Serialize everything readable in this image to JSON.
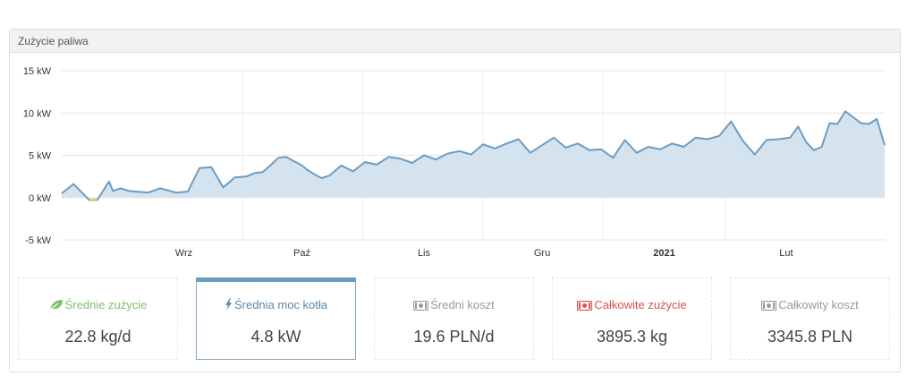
{
  "panel": {
    "title": "Zużycie paliwa"
  },
  "chart_data": {
    "type": "area",
    "title": "",
    "xlabel": "",
    "ylabel": "",
    "ylim": [
      -5,
      15
    ],
    "y_ticks": [
      "15 kW",
      "10 kW",
      "5 kW",
      "0 kW",
      "-5 kW"
    ],
    "y_tick_values": [
      15,
      10,
      5,
      0,
      -5
    ],
    "x_ticks": [
      "Wrz",
      "Paź",
      "Lis",
      "Gru",
      "2021",
      "Lut"
    ],
    "x_tick_dates": [
      "2020-09-01",
      "2020-10-01",
      "2020-11-01",
      "2020-12-01",
      "2021-01-01",
      "2021-02-01"
    ],
    "x_range": [
      "2020-08-01",
      "2021-02-26"
    ],
    "grid": true,
    "series_color": "#6b9cc2",
    "fill_color": "#d5e3ef",
    "negative_color": "#e7c34a",
    "series": [
      {
        "name": "",
        "x": [
          "2020-08-01",
          "2020-08-04",
          "2020-08-07",
          "2020-08-08",
          "2020-08-10",
          "2020-08-13",
          "2020-08-14",
          "2020-08-16",
          "2020-08-18",
          "2020-08-20",
          "2020-08-23",
          "2020-08-26",
          "2020-08-30",
          "2020-09-02",
          "2020-09-05",
          "2020-09-08",
          "2020-09-11",
          "2020-09-14",
          "2020-09-17",
          "2020-09-19",
          "2020-09-21",
          "2020-09-23",
          "2020-09-25",
          "2020-09-27",
          "2020-09-29",
          "2020-10-01",
          "2020-10-02",
          "2020-10-04",
          "2020-10-06",
          "2020-10-08",
          "2020-10-11",
          "2020-10-14",
          "2020-10-17",
          "2020-10-20",
          "2020-10-23",
          "2020-10-26",
          "2020-10-29",
          "2020-11-01",
          "2020-11-04",
          "2020-11-07",
          "2020-11-10",
          "2020-11-13",
          "2020-11-16",
          "2020-11-19",
          "2020-11-22",
          "2020-11-25",
          "2020-11-28",
          "2020-12-01",
          "2020-12-04",
          "2020-12-07",
          "2020-12-10",
          "2020-12-13",
          "2020-12-16",
          "2020-12-19",
          "2020-12-22",
          "2020-12-25",
          "2020-12-28",
          "2020-12-31",
          "2021-01-03",
          "2021-01-06",
          "2021-01-09",
          "2021-01-12",
          "2021-01-15",
          "2021-01-18",
          "2021-01-21",
          "2021-01-24",
          "2021-01-27",
          "2021-01-30",
          "2021-02-02",
          "2021-02-04",
          "2021-02-06",
          "2021-02-08",
          "2021-02-10",
          "2021-02-12",
          "2021-02-14",
          "2021-02-16",
          "2021-02-18",
          "2021-02-20",
          "2021-02-22",
          "2021-02-24",
          "2021-02-26"
        ],
        "values": [
          0.5,
          1.6,
          0.2,
          -0.3,
          -0.3,
          1.9,
          0.8,
          1.1,
          0.8,
          0.7,
          0.6,
          1.1,
          0.6,
          0.7,
          3.5,
          3.6,
          1.2,
          2.4,
          2.5,
          2.9,
          3.0,
          3.8,
          4.7,
          4.8,
          4.3,
          3.8,
          3.4,
          2.8,
          2.3,
          2.6,
          3.8,
          3.1,
          4.2,
          3.9,
          4.8,
          4.6,
          4.1,
          5.0,
          4.5,
          5.2,
          5.5,
          5.1,
          6.3,
          5.8,
          6.4,
          6.9,
          5.3,
          6.2,
          7.1,
          5.9,
          6.4,
          5.6,
          5.7,
          4.7,
          6.8,
          5.3,
          6.0,
          5.7,
          6.4,
          6.0,
          7.1,
          6.9,
          7.3,
          9.0,
          6.7,
          5.1,
          6.8,
          6.9,
          7.1,
          8.4,
          6.6,
          5.6,
          6.0,
          8.8,
          8.7,
          10.2,
          9.5,
          8.8,
          8.7,
          9.3,
          6.2
        ]
      }
    ]
  },
  "tiles": [
    {
      "icon": "leaf-icon",
      "label": "Średnie zużycie",
      "value": "22.8 kg/d",
      "color": "#7cbf6b"
    },
    {
      "icon": "bolt-icon",
      "label": "Średnia moc kotła",
      "value": "4.8 kW",
      "color": "#5a87a9"
    },
    {
      "icon": "money-icon",
      "label": "Średni koszt",
      "value": "19.6 PLN/d",
      "color": "#9a9a9a"
    },
    {
      "icon": "money-icon",
      "label": "Całkowite zużycie",
      "value": "3895.3 kg",
      "color": "#d9534f"
    },
    {
      "icon": "money-icon",
      "label": "Całkowity koszt",
      "value": "3345.8 PLN",
      "color": "#9a9a9a"
    }
  ]
}
